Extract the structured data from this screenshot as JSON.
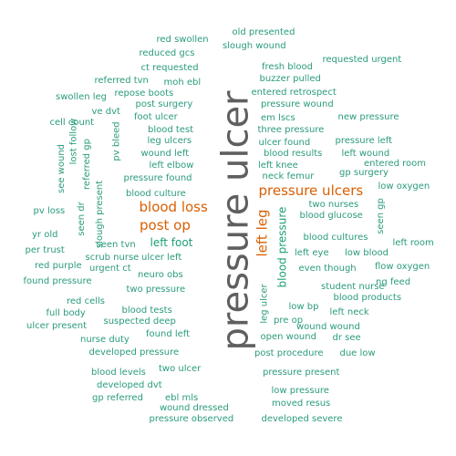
{
  "colors": {
    "primary": "#5f5f5f",
    "orange": "#d95f02",
    "green": "#1b9e77",
    "teal": "#2a9b7d"
  },
  "words": [
    {
      "text": "pressure ulcer",
      "color": "primary",
      "rank": 1
    },
    {
      "text": "pressure ulcers",
      "color": "orange",
      "rank": 2
    },
    {
      "text": "blood loss",
      "color": "orange",
      "rank": 2
    },
    {
      "text": "post op",
      "color": "orange",
      "rank": 2
    },
    {
      "text": "left leg",
      "color": "orange",
      "rank": 2
    },
    {
      "text": "left foot",
      "color": "green",
      "rank": 3
    },
    {
      "text": "blood pressure",
      "color": "green",
      "rank": 3
    },
    {
      "text": "old presented",
      "color": "teal",
      "rank": 4
    },
    {
      "text": "red swollen",
      "color": "teal",
      "rank": 4
    },
    {
      "text": "slough wound",
      "color": "teal",
      "rank": 4
    },
    {
      "text": "reduced gcs",
      "color": "teal",
      "rank": 4
    },
    {
      "text": "requested urgent",
      "color": "teal",
      "rank": 4
    },
    {
      "text": "ct requested",
      "color": "teal",
      "rank": 4
    },
    {
      "text": "fresh blood",
      "color": "teal",
      "rank": 4
    },
    {
      "text": "buzzer pulled",
      "color": "teal",
      "rank": 4
    },
    {
      "text": "referred tvn",
      "color": "teal",
      "rank": 4
    },
    {
      "text": "moh ebl",
      "color": "teal",
      "rank": 4
    },
    {
      "text": "swollen leg",
      "color": "teal",
      "rank": 4
    },
    {
      "text": "repose boots",
      "color": "teal",
      "rank": 4
    },
    {
      "text": "entered retrospect",
      "color": "teal",
      "rank": 4
    },
    {
      "text": "post surgery",
      "color": "teal",
      "rank": 4
    },
    {
      "text": "ve dvt",
      "color": "teal",
      "rank": 4
    },
    {
      "text": "pressure wound",
      "color": "teal",
      "rank": 4
    },
    {
      "text": "cell count",
      "color": "teal",
      "rank": 4
    },
    {
      "text": "foot ulcer",
      "color": "teal",
      "rank": 4
    },
    {
      "text": "em lscs",
      "color": "teal",
      "rank": 4
    },
    {
      "text": "new pressure",
      "color": "teal",
      "rank": 4
    },
    {
      "text": "blood test",
      "color": "teal",
      "rank": 4
    },
    {
      "text": "three pressure",
      "color": "teal",
      "rank": 4
    },
    {
      "text": "lost follow",
      "color": "teal",
      "rank": 4
    },
    {
      "text": "leg ulcers",
      "color": "teal",
      "rank": 4
    },
    {
      "text": "ulcer found",
      "color": "teal",
      "rank": 4
    },
    {
      "text": "pressure left",
      "color": "teal",
      "rank": 4
    },
    {
      "text": "pv bleed",
      "color": "teal",
      "rank": 4
    },
    {
      "text": "wound left",
      "color": "teal",
      "rank": 4
    },
    {
      "text": "blood results",
      "color": "teal",
      "rank": 4
    },
    {
      "text": "left wound",
      "color": "teal",
      "rank": 4
    },
    {
      "text": "see wound",
      "color": "teal",
      "rank": 4
    },
    {
      "text": "referred gp",
      "color": "teal",
      "rank": 4
    },
    {
      "text": "left elbow",
      "color": "teal",
      "rank": 4
    },
    {
      "text": "left knee",
      "color": "teal",
      "rank": 4
    },
    {
      "text": "entered room",
      "color": "teal",
      "rank": 4
    },
    {
      "text": "neck femur",
      "color": "teal",
      "rank": 4
    },
    {
      "text": "gp surgery",
      "color": "teal",
      "rank": 4
    },
    {
      "text": "pressure found",
      "color": "teal",
      "rank": 4
    },
    {
      "text": "low oxygen",
      "color": "teal",
      "rank": 4
    },
    {
      "text": "blood culture",
      "color": "teal",
      "rank": 4
    },
    {
      "text": "two nurses",
      "color": "teal",
      "rank": 4
    },
    {
      "text": "seen dr",
      "color": "teal",
      "rank": 4
    },
    {
      "text": "slough present",
      "color": "teal",
      "rank": 4
    },
    {
      "text": "pv loss",
      "color": "teal",
      "rank": 4
    },
    {
      "text": "blood glucose",
      "color": "teal",
      "rank": 4
    },
    {
      "text": "seen gp",
      "color": "teal",
      "rank": 4
    },
    {
      "text": "yr old",
      "color": "teal",
      "rank": 4
    },
    {
      "text": "blood cultures",
      "color": "teal",
      "rank": 4
    },
    {
      "text": "per trust",
      "color": "teal",
      "rank": 4
    },
    {
      "text": "seen tvn",
      "color": "teal",
      "rank": 4
    },
    {
      "text": "left room",
      "color": "teal",
      "rank": 4
    },
    {
      "text": "scrub nurse",
      "color": "teal",
      "rank": 4
    },
    {
      "text": "left eye",
      "color": "teal",
      "rank": 4
    },
    {
      "text": "low blood",
      "color": "teal",
      "rank": 4
    },
    {
      "text": "ulcer left",
      "color": "teal",
      "rank": 4
    },
    {
      "text": "red purple",
      "color": "teal",
      "rank": 4
    },
    {
      "text": "urgent ct",
      "color": "teal",
      "rank": 4
    },
    {
      "text": "even though",
      "color": "teal",
      "rank": 4
    },
    {
      "text": "flow oxygen",
      "color": "teal",
      "rank": 4
    },
    {
      "text": "neuro obs",
      "color": "teal",
      "rank": 4
    },
    {
      "text": "found pressure",
      "color": "teal",
      "rank": 4
    },
    {
      "text": "ng feed",
      "color": "teal",
      "rank": 4
    },
    {
      "text": "two pressure",
      "color": "teal",
      "rank": 4
    },
    {
      "text": "student nurse",
      "color": "teal",
      "rank": 4
    },
    {
      "text": "blood products",
      "color": "teal",
      "rank": 4
    },
    {
      "text": "red cells",
      "color": "teal",
      "rank": 4
    },
    {
      "text": "leg ulcer",
      "color": "teal",
      "rank": 4
    },
    {
      "text": "low bp",
      "color": "teal",
      "rank": 4
    },
    {
      "text": "full body",
      "color": "teal",
      "rank": 4
    },
    {
      "text": "blood tests",
      "color": "teal",
      "rank": 4
    },
    {
      "text": "left neck",
      "color": "teal",
      "rank": 4
    },
    {
      "text": "pre op",
      "color": "teal",
      "rank": 4
    },
    {
      "text": "suspected deep",
      "color": "teal",
      "rank": 4
    },
    {
      "text": "ulcer present",
      "color": "teal",
      "rank": 4
    },
    {
      "text": "wound wound",
      "color": "teal",
      "rank": 4
    },
    {
      "text": "found left",
      "color": "teal",
      "rank": 4
    },
    {
      "text": "open wound",
      "color": "teal",
      "rank": 4
    },
    {
      "text": "dr see",
      "color": "teal",
      "rank": 4
    },
    {
      "text": "nurse duty",
      "color": "teal",
      "rank": 4
    },
    {
      "text": "developed pressure",
      "color": "teal",
      "rank": 4
    },
    {
      "text": "post procedure",
      "color": "teal",
      "rank": 4
    },
    {
      "text": "due low",
      "color": "teal",
      "rank": 4
    },
    {
      "text": "blood levels",
      "color": "teal",
      "rank": 4
    },
    {
      "text": "two ulcer",
      "color": "teal",
      "rank": 4
    },
    {
      "text": "pressure present",
      "color": "teal",
      "rank": 4
    },
    {
      "text": "developed dvt",
      "color": "teal",
      "rank": 4
    },
    {
      "text": "gp referred",
      "color": "teal",
      "rank": 4
    },
    {
      "text": "ebl mls",
      "color": "teal",
      "rank": 4
    },
    {
      "text": "low pressure",
      "color": "teal",
      "rank": 4
    },
    {
      "text": "wound dressed",
      "color": "teal",
      "rank": 4
    },
    {
      "text": "moved resus",
      "color": "teal",
      "rank": 4
    },
    {
      "text": "pressure observed",
      "color": "teal",
      "rank": 4
    },
    {
      "text": "developed severe",
      "color": "teal",
      "rank": 4
    }
  ]
}
